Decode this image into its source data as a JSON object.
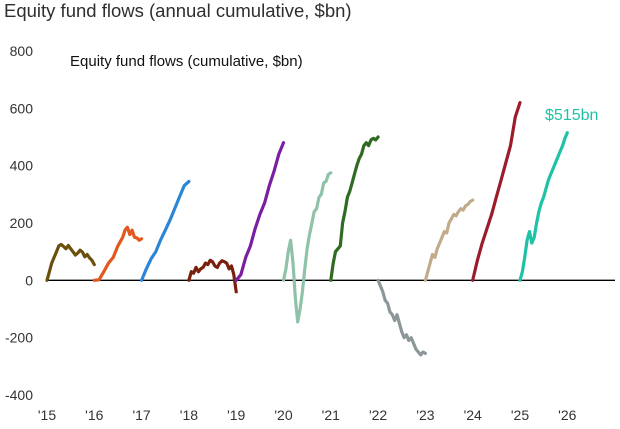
{
  "page": {
    "title": "Equity fund flows (annual cumulative, $bn)"
  },
  "chart_data": {
    "type": "line",
    "title": "Equity fund flows (cumulative, $bn)",
    "xlabel": "",
    "ylabel": "",
    "xlim": [
      2015,
      2026.9
    ],
    "ylim": [
      -400,
      800
    ],
    "yticks": [
      -400,
      -200,
      0,
      200,
      400,
      600,
      800
    ],
    "xticks": [
      {
        "x": 2015,
        "label": "'15"
      },
      {
        "x": 2016,
        "label": "'16"
      },
      {
        "x": 2017,
        "label": "'17"
      },
      {
        "x": 2018,
        "label": "'18"
      },
      {
        "x": 2019,
        "label": "'19"
      },
      {
        "x": 2020,
        "label": "'20"
      },
      {
        "x": 2021,
        "label": "'21"
      },
      {
        "x": 2022,
        "label": "'22"
      },
      {
        "x": 2023,
        "label": "'23"
      },
      {
        "x": 2024,
        "label": "'24"
      },
      {
        "x": 2025,
        "label": "'25"
      },
      {
        "x": 2026,
        "label": "'26"
      }
    ],
    "grid": false,
    "annotation": {
      "text": "$515bn",
      "series": "2025"
    },
    "series": [
      {
        "color": "#6b4f0c",
        "x": [
          2015.0,
          2015.05,
          2015.1,
          2015.15,
          2015.2,
          2015.25,
          2015.3,
          2015.35,
          2015.4,
          2015.45,
          2015.5,
          2015.55,
          2015.6,
          2015.65,
          2015.7,
          2015.75,
          2015.8,
          2015.85,
          2015.9,
          2015.95,
          2016.0
        ],
        "y": [
          0,
          30,
          60,
          80,
          100,
          120,
          125,
          118,
          110,
          122,
          110,
          100,
          88,
          95,
          105,
          98,
          82,
          90,
          78,
          70,
          55
        ]
      },
      {
        "color": "#e2571e",
        "x": [
          2016.0,
          2016.1,
          2016.2,
          2016.3,
          2016.4,
          2016.5,
          2016.6,
          2016.65,
          2016.7,
          2016.75,
          2016.8,
          2016.85,
          2016.9,
          2016.95,
          2017.0
        ],
        "y": [
          0,
          2,
          30,
          60,
          80,
          120,
          150,
          175,
          185,
          160,
          175,
          150,
          148,
          140,
          145
        ]
      },
      {
        "color": "#2b86d6",
        "x": [
          2017.0,
          2017.1,
          2017.2,
          2017.3,
          2017.4,
          2017.5,
          2017.6,
          2017.7,
          2017.8,
          2017.9,
          2018.0
        ],
        "y": [
          0,
          40,
          75,
          100,
          140,
          175,
          210,
          250,
          290,
          330,
          345
        ]
      },
      {
        "color": "#7b1f0c",
        "x": [
          2018.0,
          2018.05,
          2018.1,
          2018.15,
          2018.2,
          2018.25,
          2018.3,
          2018.35,
          2018.4,
          2018.45,
          2018.5,
          2018.55,
          2018.6,
          2018.65,
          2018.7,
          2018.75,
          2018.8,
          2018.85,
          2018.9,
          2018.95,
          2019.0
        ],
        "y": [
          0,
          30,
          25,
          45,
          30,
          40,
          45,
          60,
          55,
          70,
          65,
          50,
          45,
          60,
          68,
          65,
          60,
          40,
          50,
          20,
          -40
        ]
      },
      {
        "color": "#7b1fa2",
        "x": [
          2019.0,
          2019.1,
          2019.2,
          2019.3,
          2019.4,
          2019.5,
          2019.6,
          2019.7,
          2019.8,
          2019.9,
          2020.0
        ],
        "y": [
          0,
          20,
          80,
          120,
          180,
          230,
          270,
          330,
          380,
          440,
          480
        ]
      },
      {
        "color": "#8fc2a8",
        "x": [
          2020.0,
          2020.05,
          2020.1,
          2020.15,
          2020.2,
          2020.25,
          2020.3,
          2020.35,
          2020.4,
          2020.45,
          2020.5,
          2020.55,
          2020.6,
          2020.65,
          2020.7,
          2020.75,
          2020.8,
          2020.85,
          2020.9,
          2020.95,
          2021.0
        ],
        "y": [
          0,
          40,
          100,
          140,
          60,
          -60,
          -145,
          -100,
          -40,
          40,
          110,
          160,
          200,
          240,
          250,
          290,
          300,
          340,
          345,
          370,
          375
        ]
      },
      {
        "color": "#2f6b22",
        "x": [
          2021.0,
          2021.05,
          2021.1,
          2021.15,
          2021.2,
          2021.25,
          2021.3,
          2021.35,
          2021.4,
          2021.45,
          2021.5,
          2021.55,
          2021.6,
          2021.65,
          2021.7,
          2021.75,
          2021.8,
          2021.85,
          2021.9,
          2021.95,
          2022.0
        ],
        "y": [
          0,
          60,
          100,
          110,
          120,
          200,
          240,
          290,
          310,
          340,
          370,
          400,
          425,
          440,
          470,
          480,
          470,
          490,
          495,
          490,
          500
        ]
      },
      {
        "color": "#8c9799",
        "x": [
          2022.0,
          2022.05,
          2022.1,
          2022.15,
          2022.2,
          2022.25,
          2022.3,
          2022.35,
          2022.4,
          2022.45,
          2022.5,
          2022.55,
          2022.6,
          2022.65,
          2022.7,
          2022.75,
          2022.8,
          2022.85,
          2022.9,
          2022.95,
          2023.0
        ],
        "y": [
          0,
          -20,
          -40,
          -70,
          -80,
          -110,
          -120,
          -140,
          -120,
          -150,
          -180,
          -200,
          -190,
          -210,
          -200,
          -220,
          -240,
          -250,
          -260,
          -250,
          -255
        ]
      },
      {
        "color": "#c2ab8a",
        "x": [
          2023.0,
          2023.05,
          2023.1,
          2023.15,
          2023.2,
          2023.25,
          2023.3,
          2023.35,
          2023.4,
          2023.45,
          2023.5,
          2023.55,
          2023.6,
          2023.65,
          2023.7,
          2023.75,
          2023.8,
          2023.85,
          2023.9,
          2023.95,
          2024.0
        ],
        "y": [
          0,
          30,
          60,
          90,
          80,
          110,
          130,
          150,
          170,
          165,
          200,
          215,
          230,
          225,
          240,
          250,
          245,
          260,
          265,
          275,
          280
        ]
      },
      {
        "color": "#9c1c2c",
        "x": [
          2024.0,
          2024.1,
          2024.2,
          2024.3,
          2024.4,
          2024.5,
          2024.6,
          2024.7,
          2024.8,
          2024.9,
          2025.0
        ],
        "y": [
          0,
          70,
          130,
          180,
          230,
          290,
          350,
          410,
          470,
          570,
          620
        ]
      },
      {
        "color": "#1fc2a6",
        "x": [
          2025.0,
          2025.05,
          2025.1,
          2025.15,
          2025.2,
          2025.25,
          2025.3,
          2025.35,
          2025.4,
          2025.45,
          2025.5,
          2025.55,
          2025.6,
          2025.65,
          2025.7,
          2025.75,
          2025.8,
          2025.85,
          2025.9,
          2025.95,
          2026.0
        ],
        "y": [
          0,
          30,
          80,
          140,
          170,
          130,
          150,
          200,
          240,
          270,
          290,
          320,
          350,
          370,
          390,
          410,
          430,
          450,
          470,
          495,
          515
        ]
      }
    ]
  }
}
